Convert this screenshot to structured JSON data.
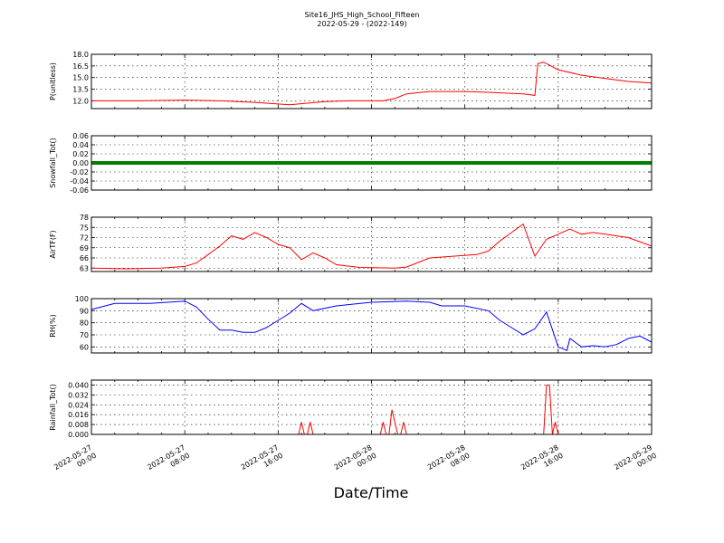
{
  "chart_data": {
    "type": "line",
    "title": "Site16_JHS_High_School_Fifteen",
    "subtitle": "2022-05-29 - (2022-149)",
    "xlabel": "Date/Time",
    "xlim": [
      "2022-05-27 00:00",
      "2022-05-29 00:00"
    ],
    "x_ticks": [
      {
        "line1": "2022-05-27",
        "line2": "00:00"
      },
      {
        "line1": "2022-05-27",
        "line2": "08:00"
      },
      {
        "line1": "2022-05-27",
        "line2": "16:00"
      },
      {
        "line1": "2022-05-28",
        "line2": "00:00"
      },
      {
        "line1": "2022-05-28",
        "line2": "08:00"
      },
      {
        "line1": "2022-05-28",
        "line2": "16:00"
      },
      {
        "line1": "2022-05-29",
        "line2": "00:00"
      }
    ],
    "grid": true,
    "panels": [
      {
        "ylabel": "P(unitless)",
        "ylim": [
          11.0,
          18.0
        ],
        "yticks": [
          "12.0",
          "13.5",
          "15.0",
          "16.5",
          "18.0"
        ],
        "ytick_values": [
          12.0,
          13.5,
          15.0,
          16.5,
          18.0
        ],
        "color": "#ff0000",
        "series": {
          "x": [
            "2022-05-27 00:00",
            "2022-05-27 04:00",
            "2022-05-27 08:00",
            "2022-05-27 11:00",
            "2022-05-27 14:00",
            "2022-05-27 17:00",
            "2022-05-27 20:00",
            "2022-05-27 22:00",
            "2022-05-28 00:00",
            "2022-05-28 01:00",
            "2022-05-28 02:00",
            "2022-05-28 03:00",
            "2022-05-28 05:00",
            "2022-05-28 08:00",
            "2022-05-28 10:00",
            "2022-05-28 13:00",
            "2022-05-28 14:00",
            "2022-05-28 14:15",
            "2022-05-28 14:45",
            "2022-05-28 16:00",
            "2022-05-28 18:00",
            "2022-05-28 20:00",
            "2022-05-28 22:00",
            "2022-05-29 00:00"
          ],
          "y": [
            12.0,
            12.0,
            12.1,
            12.0,
            11.8,
            11.5,
            11.9,
            12.0,
            12.0,
            12.0,
            12.3,
            12.9,
            13.2,
            13.2,
            13.1,
            12.9,
            12.7,
            16.8,
            17.0,
            16.0,
            15.3,
            14.9,
            14.5,
            14.3
          ]
        }
      },
      {
        "ylabel": "Snowfall_Tot()",
        "ylim": [
          -0.06,
          0.06
        ],
        "yticks": [
          "-0.06",
          "-0.04",
          "-0.02",
          "0.00",
          "0.02",
          "0.04",
          "0.06"
        ],
        "ytick_values": [
          -0.06,
          -0.04,
          -0.02,
          0.0,
          0.02,
          0.04,
          0.06
        ],
        "color": "#008000",
        "series": {
          "x": [
            "2022-05-27 00:00",
            "2022-05-29 00:00"
          ],
          "y": [
            0.0,
            0.0
          ]
        }
      },
      {
        "ylabel": "AirTF(F)",
        "ylim": [
          62,
          78
        ],
        "yticks": [
          "63",
          "66",
          "69",
          "72",
          "75",
          "78"
        ],
        "ytick_values": [
          63,
          66,
          69,
          72,
          75,
          78
        ],
        "color": "#ff0000",
        "series": {
          "x": [
            "2022-05-27 00:00",
            "2022-05-27 03:00",
            "2022-05-27 06:00",
            "2022-05-27 08:00",
            "2022-05-27 09:00",
            "2022-05-27 10:00",
            "2022-05-27 11:00",
            "2022-05-27 12:00",
            "2022-05-27 13:00",
            "2022-05-27 14:00",
            "2022-05-27 15:00",
            "2022-05-27 16:00",
            "2022-05-27 17:00",
            "2022-05-27 18:00",
            "2022-05-27 19:00",
            "2022-05-27 20:00",
            "2022-05-27 21:00",
            "2022-05-27 23:00",
            "2022-05-28 02:00",
            "2022-05-28 03:00",
            "2022-05-28 05:00",
            "2022-05-28 07:00",
            "2022-05-28 09:00",
            "2022-05-28 10:00",
            "2022-05-28 11:00",
            "2022-05-28 12:00",
            "2022-05-28 13:00",
            "2022-05-28 14:00",
            "2022-05-28 15:00",
            "2022-05-28 16:00",
            "2022-05-28 17:00",
            "2022-05-28 18:00",
            "2022-05-28 19:00",
            "2022-05-28 20:00",
            "2022-05-28 22:00",
            "2022-05-29 00:00"
          ],
          "y": [
            63.0,
            62.8,
            63.0,
            63.5,
            64.5,
            67.0,
            69.5,
            72.5,
            71.5,
            73.5,
            72.0,
            70.0,
            69.0,
            65.5,
            67.5,
            66.0,
            64.0,
            63.2,
            63.0,
            63.3,
            66.0,
            66.5,
            67.0,
            68.0,
            71.0,
            73.5,
            76.0,
            66.5,
            71.5,
            73.0,
            74.5,
            73.0,
            73.5,
            73.0,
            72.0,
            69.5
          ]
        }
      },
      {
        "ylabel": "RH(%)",
        "ylim": [
          55,
          100
        ],
        "yticks": [
          "60",
          "70",
          "80",
          "90",
          "100"
        ],
        "ytick_values": [
          60,
          70,
          80,
          90,
          100
        ],
        "color": "#0000ff",
        "series": {
          "x": [
            "2022-05-27 00:00",
            "2022-05-27 02:00",
            "2022-05-27 05:00",
            "2022-05-27 08:00",
            "2022-05-27 09:00",
            "2022-05-27 10:00",
            "2022-05-27 11:00",
            "2022-05-27 12:00",
            "2022-05-27 13:00",
            "2022-05-27 14:00",
            "2022-05-27 15:00",
            "2022-05-27 16:00",
            "2022-05-27 17:00",
            "2022-05-27 18:00",
            "2022-05-27 19:00",
            "2022-05-27 21:00",
            "2022-05-28 00:00",
            "2022-05-28 03:00",
            "2022-05-28 05:00",
            "2022-05-28 06:00",
            "2022-05-28 08:00",
            "2022-05-28 10:00",
            "2022-05-28 11:00",
            "2022-05-28 12:00",
            "2022-05-28 13:00",
            "2022-05-28 14:00",
            "2022-05-28 15:00",
            "2022-05-28 16:00",
            "2022-05-28 16:45",
            "2022-05-28 17:00",
            "2022-05-28 18:00",
            "2022-05-28 19:00",
            "2022-05-28 20:00",
            "2022-05-28 21:00",
            "2022-05-28 22:00",
            "2022-05-28 23:00",
            "2022-05-29 00:00"
          ],
          "y": [
            91,
            96,
            96,
            98,
            93,
            83,
            74,
            74,
            72,
            72,
            76,
            82,
            88,
            96,
            90,
            94,
            97,
            98,
            97,
            94,
            94,
            90,
            82,
            76,
            70,
            75,
            89,
            60,
            57,
            67,
            60,
            61,
            60,
            62,
            67,
            69,
            64
          ]
        }
      },
      {
        "ylabel": "Rainfall_Tot()",
        "ylim": [
          0.0,
          0.044
        ],
        "yticks": [
          "0.000",
          "0.008",
          "0.016",
          "0.024",
          "0.032",
          "0.040"
        ],
        "ytick_values": [
          0.0,
          0.008,
          0.016,
          0.024,
          0.032,
          0.04
        ],
        "color": "#ff0000",
        "series": {
          "x": [
            "2022-05-27 00:00",
            "2022-05-27 17:45",
            "2022-05-27 18:00",
            "2022-05-27 18:15",
            "2022-05-27 18:30",
            "2022-05-27 18:45",
            "2022-05-27 19:00",
            "2022-05-28 00:45",
            "2022-05-28 01:00",
            "2022-05-28 01:15",
            "2022-05-28 01:30",
            "2022-05-28 01:45",
            "2022-05-28 02:15",
            "2022-05-28 02:30",
            "2022-05-28 02:45",
            "2022-05-28 03:00",
            "2022-05-28 03:15",
            "2022-05-28 14:45",
            "2022-05-28 15:00",
            "2022-05-28 15:15",
            "2022-05-28 15:30",
            "2022-05-28 15:45",
            "2022-05-28 16:00",
            "2022-05-29 00:00"
          ],
          "y": [
            0.0,
            0.0,
            0.01,
            0.0,
            0.0,
            0.01,
            0.0,
            0.0,
            0.01,
            0.0,
            0.0,
            0.02,
            0.0,
            0.0,
            0.01,
            0.0,
            0.0,
            0.0,
            0.04,
            0.04,
            0.0,
            0.01,
            0.0,
            0.0
          ]
        }
      }
    ]
  }
}
